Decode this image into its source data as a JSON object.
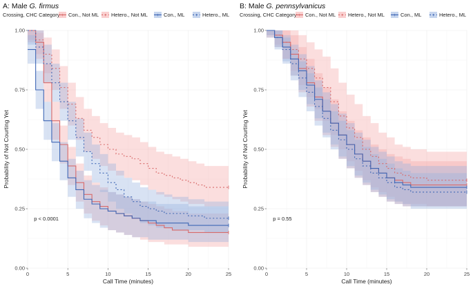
{
  "chart_data": [
    {
      "type": "line",
      "subtype": "kaplan-meier",
      "title": {
        "prefix": "A: Male ",
        "species": "G. firmus"
      },
      "xlabel": "Call Time (minutes)",
      "ylabel": "Probability of Not Courting Yet",
      "xlim": [
        0,
        25
      ],
      "ylim": [
        0,
        1
      ],
      "xticks": [
        0,
        5,
        10,
        15,
        20,
        25
      ],
      "yticks": [
        0.0,
        0.25,
        0.5,
        0.75,
        1.0
      ],
      "ytick_labels": [
        "0.00",
        "0.25",
        "0.50",
        "0.75",
        "1.00"
      ],
      "legend_title": "Crossing, CHC Category",
      "annotation": "p < 0.0001",
      "series": [
        {
          "name": "Con., Not ML",
          "color": "#d86a6a",
          "fill": "#f5a9a9",
          "dash": "none",
          "x": [
            0,
            1,
            2,
            3,
            4,
            5,
            6,
            7,
            8,
            9,
            10,
            11,
            12,
            13,
            14,
            15,
            16,
            17,
            18,
            20,
            25
          ],
          "y": [
            1.0,
            0.95,
            0.78,
            0.62,
            0.52,
            0.43,
            0.36,
            0.31,
            0.28,
            0.26,
            0.24,
            0.23,
            0.22,
            0.21,
            0.2,
            0.19,
            0.18,
            0.17,
            0.16,
            0.15,
            0.15
          ],
          "lo": [
            0.95,
            0.88,
            0.7,
            0.54,
            0.44,
            0.35,
            0.28,
            0.23,
            0.2,
            0.18,
            0.16,
            0.15,
            0.14,
            0.13,
            0.12,
            0.11,
            0.11,
            0.1,
            0.1,
            0.09,
            0.09
          ],
          "hi": [
            1.0,
            0.99,
            0.86,
            0.7,
            0.6,
            0.51,
            0.44,
            0.39,
            0.36,
            0.34,
            0.32,
            0.31,
            0.3,
            0.29,
            0.28,
            0.27,
            0.26,
            0.25,
            0.24,
            0.23,
            0.23
          ]
        },
        {
          "name": "Hetero., Not ML",
          "color": "#d86a6a",
          "fill": "#f5a9a9",
          "dash": "2,3",
          "x": [
            0,
            1,
            2,
            3,
            4,
            5,
            6,
            7,
            8,
            9,
            10,
            11,
            12,
            13,
            14,
            15,
            16,
            17,
            18,
            19,
            20,
            21,
            22,
            25
          ],
          "y": [
            1.0,
            0.96,
            0.9,
            0.84,
            0.76,
            0.69,
            0.63,
            0.58,
            0.55,
            0.52,
            0.5,
            0.48,
            0.47,
            0.46,
            0.44,
            0.42,
            0.4,
            0.39,
            0.38,
            0.37,
            0.36,
            0.35,
            0.34,
            0.34
          ],
          "lo": [
            0.96,
            0.9,
            0.82,
            0.75,
            0.67,
            0.6,
            0.54,
            0.49,
            0.46,
            0.43,
            0.41,
            0.39,
            0.38,
            0.37,
            0.35,
            0.33,
            0.31,
            0.3,
            0.29,
            0.28,
            0.27,
            0.27,
            0.26,
            0.26
          ],
          "hi": [
            1.0,
            1.0,
            0.97,
            0.92,
            0.85,
            0.78,
            0.72,
            0.67,
            0.64,
            0.61,
            0.59,
            0.57,
            0.56,
            0.55,
            0.53,
            0.51,
            0.49,
            0.48,
            0.47,
            0.46,
            0.45,
            0.44,
            0.43,
            0.43
          ]
        },
        {
          "name": "Con., ML",
          "color": "#3f67b5",
          "fill": "#98b3e0",
          "dash": "none",
          "x": [
            0,
            1,
            2,
            3,
            4,
            5,
            6,
            7,
            8,
            9,
            10,
            11,
            12,
            13,
            14,
            15,
            16,
            17,
            20,
            25
          ],
          "y": [
            0.92,
            0.75,
            0.62,
            0.53,
            0.45,
            0.38,
            0.33,
            0.29,
            0.27,
            0.25,
            0.24,
            0.23,
            0.22,
            0.21,
            0.2,
            0.2,
            0.19,
            0.19,
            0.18,
            0.18
          ],
          "lo": [
            0.86,
            0.67,
            0.54,
            0.45,
            0.37,
            0.3,
            0.25,
            0.21,
            0.19,
            0.17,
            0.16,
            0.15,
            0.14,
            0.13,
            0.13,
            0.12,
            0.12,
            0.12,
            0.11,
            0.11
          ],
          "hi": [
            0.98,
            0.83,
            0.7,
            0.61,
            0.53,
            0.46,
            0.41,
            0.37,
            0.35,
            0.33,
            0.32,
            0.31,
            0.3,
            0.29,
            0.28,
            0.28,
            0.27,
            0.27,
            0.26,
            0.26
          ]
        },
        {
          "name": "Hetero., ML",
          "color": "#3f67b5",
          "fill": "#98b3e0",
          "dash": "2,3",
          "x": [
            0,
            1,
            2,
            3,
            4,
            5,
            6,
            7,
            8,
            9,
            10,
            11,
            12,
            13,
            14,
            15,
            16,
            17,
            18,
            20,
            22,
            25
          ],
          "y": [
            1.0,
            0.93,
            0.86,
            0.78,
            0.7,
            0.62,
            0.55,
            0.49,
            0.44,
            0.4,
            0.36,
            0.33,
            0.3,
            0.28,
            0.26,
            0.25,
            0.24,
            0.23,
            0.23,
            0.22,
            0.21,
            0.21
          ],
          "lo": [
            0.94,
            0.86,
            0.78,
            0.7,
            0.62,
            0.54,
            0.47,
            0.41,
            0.36,
            0.32,
            0.28,
            0.25,
            0.23,
            0.21,
            0.19,
            0.18,
            0.17,
            0.17,
            0.16,
            0.16,
            0.15,
            0.15
          ],
          "hi": [
            1.0,
            1.0,
            0.94,
            0.86,
            0.78,
            0.7,
            0.63,
            0.57,
            0.52,
            0.48,
            0.44,
            0.41,
            0.38,
            0.36,
            0.34,
            0.33,
            0.32,
            0.31,
            0.3,
            0.29,
            0.28,
            0.28
          ]
        }
      ]
    },
    {
      "type": "line",
      "subtype": "kaplan-meier",
      "title": {
        "prefix": "B: Male ",
        "species": "G. pennsylvanicus"
      },
      "xlabel": "Call Time (minutes)",
      "ylabel": "Probability of Not Courting Yet",
      "xlim": [
        0,
        25
      ],
      "ylim": [
        0,
        1
      ],
      "xticks": [
        0,
        5,
        10,
        15,
        20,
        25
      ],
      "yticks": [
        0.0,
        0.25,
        0.5,
        0.75,
        1.0
      ],
      "ytick_labels": [
        "0.00",
        "0.25",
        "0.50",
        "0.75",
        "1.00"
      ],
      "legend_title": "Crossing, CHC Category",
      "annotation": "p = 0.55",
      "series": [
        {
          "name": "Con., Not ML",
          "color": "#d86a6a",
          "fill": "#f5a9a9",
          "dash": "none",
          "x": [
            0,
            1,
            2,
            3,
            4,
            5,
            6,
            7,
            8,
            9,
            10,
            11,
            12,
            13,
            14,
            15,
            16,
            17,
            18,
            20,
            25
          ],
          "y": [
            1.0,
            0.98,
            0.95,
            0.9,
            0.84,
            0.78,
            0.72,
            0.66,
            0.61,
            0.56,
            0.52,
            0.48,
            0.45,
            0.42,
            0.4,
            0.38,
            0.37,
            0.36,
            0.35,
            0.35,
            0.35
          ],
          "lo": [
            0.98,
            0.94,
            0.88,
            0.81,
            0.74,
            0.68,
            0.62,
            0.56,
            0.51,
            0.46,
            0.42,
            0.38,
            0.35,
            0.32,
            0.3,
            0.28,
            0.27,
            0.26,
            0.26,
            0.26,
            0.26
          ],
          "hi": [
            1.0,
            1.0,
            1.0,
            0.98,
            0.93,
            0.88,
            0.82,
            0.76,
            0.71,
            0.66,
            0.62,
            0.58,
            0.55,
            0.52,
            0.5,
            0.48,
            0.47,
            0.46,
            0.45,
            0.45,
            0.45
          ]
        },
        {
          "name": "Hetero., Not ML",
          "color": "#d86a6a",
          "fill": "#f5a9a9",
          "dash": "2,3",
          "x": [
            0,
            1,
            2,
            3,
            4,
            5,
            6,
            7,
            8,
            9,
            10,
            11,
            12,
            13,
            14,
            15,
            16,
            17,
            18,
            20,
            25
          ],
          "y": [
            1.0,
            0.98,
            0.95,
            0.92,
            0.88,
            0.84,
            0.8,
            0.76,
            0.7,
            0.64,
            0.59,
            0.55,
            0.5,
            0.47,
            0.44,
            0.42,
            0.4,
            0.39,
            0.38,
            0.37,
            0.37
          ],
          "lo": [
            0.97,
            0.93,
            0.88,
            0.83,
            0.77,
            0.72,
            0.67,
            0.62,
            0.56,
            0.5,
            0.45,
            0.41,
            0.37,
            0.34,
            0.32,
            0.3,
            0.28,
            0.27,
            0.27,
            0.26,
            0.26
          ],
          "hi": [
            1.0,
            1.0,
            1.0,
            1.0,
            0.98,
            0.95,
            0.92,
            0.89,
            0.84,
            0.78,
            0.73,
            0.69,
            0.64,
            0.61,
            0.57,
            0.55,
            0.52,
            0.51,
            0.5,
            0.49,
            0.49
          ]
        },
        {
          "name": "Con., ML",
          "color": "#3f67b5",
          "fill": "#98b3e0",
          "dash": "none",
          "x": [
            0,
            1,
            2,
            3,
            4,
            5,
            6,
            7,
            8,
            9,
            10,
            11,
            12,
            13,
            14,
            15,
            16,
            17,
            18,
            20,
            25
          ],
          "y": [
            1.0,
            0.97,
            0.93,
            0.88,
            0.83,
            0.77,
            0.71,
            0.66,
            0.61,
            0.56,
            0.52,
            0.48,
            0.45,
            0.42,
            0.4,
            0.38,
            0.36,
            0.35,
            0.34,
            0.34,
            0.34
          ],
          "lo": [
            0.98,
            0.93,
            0.87,
            0.81,
            0.75,
            0.69,
            0.63,
            0.57,
            0.52,
            0.47,
            0.43,
            0.39,
            0.36,
            0.33,
            0.31,
            0.29,
            0.28,
            0.27,
            0.26,
            0.26,
            0.26
          ],
          "hi": [
            1.0,
            1.0,
            0.98,
            0.94,
            0.9,
            0.85,
            0.79,
            0.74,
            0.69,
            0.65,
            0.61,
            0.57,
            0.54,
            0.51,
            0.49,
            0.47,
            0.45,
            0.44,
            0.43,
            0.43,
            0.43
          ]
        },
        {
          "name": "Hetero., ML",
          "color": "#3f67b5",
          "fill": "#98b3e0",
          "dash": "2,3",
          "x": [
            0,
            1,
            2,
            3,
            4,
            5,
            6,
            7,
            8,
            9,
            10,
            11,
            12,
            13,
            14,
            15,
            16,
            17,
            18,
            20,
            25
          ],
          "y": [
            1.0,
            0.97,
            0.92,
            0.86,
            0.8,
            0.74,
            0.68,
            0.63,
            0.58,
            0.54,
            0.5,
            0.46,
            0.43,
            0.4,
            0.38,
            0.36,
            0.34,
            0.33,
            0.32,
            0.32,
            0.32
          ],
          "lo": [
            0.97,
            0.92,
            0.86,
            0.79,
            0.72,
            0.66,
            0.6,
            0.55,
            0.5,
            0.46,
            0.42,
            0.38,
            0.35,
            0.32,
            0.3,
            0.28,
            0.27,
            0.26,
            0.25,
            0.25,
            0.25
          ],
          "hi": [
            1.0,
            1.0,
            0.97,
            0.92,
            0.87,
            0.82,
            0.76,
            0.71,
            0.66,
            0.62,
            0.58,
            0.54,
            0.51,
            0.48,
            0.46,
            0.44,
            0.42,
            0.41,
            0.4,
            0.4,
            0.4
          ]
        }
      ]
    }
  ]
}
